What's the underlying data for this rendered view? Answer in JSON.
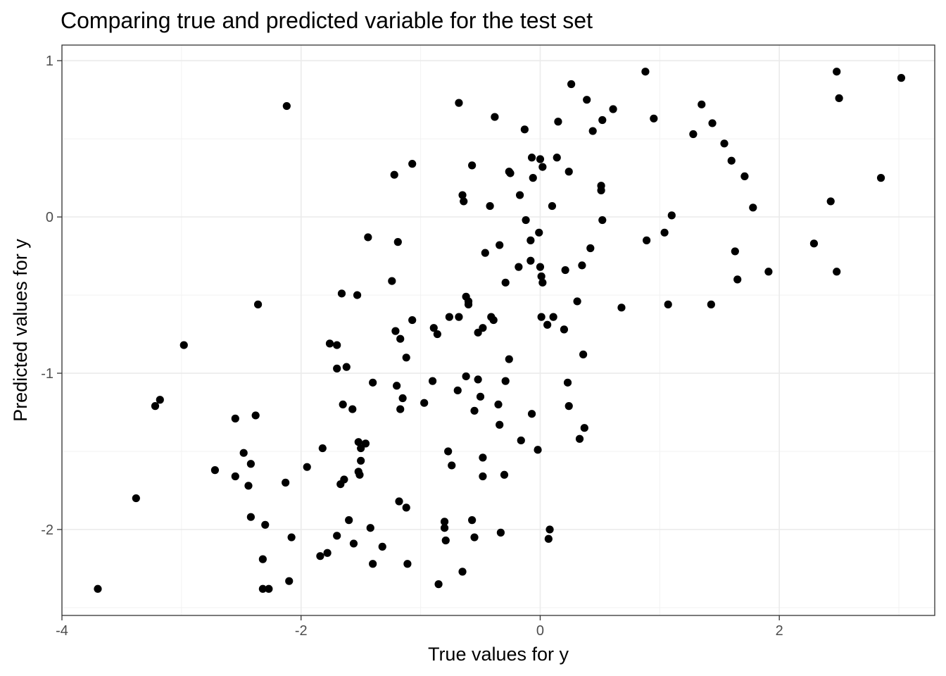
{
  "chart_data": {
    "type": "scatter",
    "title": "Comparing true and predicted variable for the test set",
    "xlabel": "True values for y",
    "ylabel": "Predicted values for y",
    "xlim": [
      -4.0,
      3.3
    ],
    "ylim": [
      -2.55,
      1.1
    ],
    "xticks": [
      -4,
      -2,
      0,
      2
    ],
    "yticks": [
      -2,
      -1,
      0,
      1
    ],
    "xtick_labels": [
      "-4",
      "-2",
      "0",
      "2"
    ],
    "ytick_labels": [
      "-2",
      "-1",
      "0",
      "1"
    ],
    "grid": true,
    "point_color": "#000000",
    "points": [
      [
        -3.7,
        -2.38
      ],
      [
        -3.38,
        -1.8
      ],
      [
        -3.22,
        -1.21
      ],
      [
        -3.18,
        -1.17
      ],
      [
        -2.98,
        -0.82
      ],
      [
        -2.72,
        -1.62
      ],
      [
        -2.55,
        -1.29
      ],
      [
        -2.55,
        -1.66
      ],
      [
        -2.48,
        -1.51
      ],
      [
        -2.44,
        -1.72
      ],
      [
        -2.42,
        -1.58
      ],
      [
        -2.42,
        -1.92
      ],
      [
        -2.38,
        -1.27
      ],
      [
        -2.36,
        -0.56
      ],
      [
        -2.32,
        -2.19
      ],
      [
        -2.32,
        -2.38
      ],
      [
        -2.3,
        -1.97
      ],
      [
        -2.27,
        -2.38
      ],
      [
        -2.13,
        -1.7
      ],
      [
        -2.12,
        0.71
      ],
      [
        -2.1,
        -2.33
      ],
      [
        -2.08,
        -2.05
      ],
      [
        -1.95,
        -1.6
      ],
      [
        -1.84,
        -2.17
      ],
      [
        -1.82,
        -1.48
      ],
      [
        -1.78,
        -2.15
      ],
      [
        -1.76,
        -0.81
      ],
      [
        -1.7,
        -0.97
      ],
      [
        -1.7,
        -0.82
      ],
      [
        -1.7,
        -2.04
      ],
      [
        -1.67,
        -1.71
      ],
      [
        -1.66,
        -0.49
      ],
      [
        -1.65,
        -1.2
      ],
      [
        -1.64,
        -1.68
      ],
      [
        -1.62,
        -0.96
      ],
      [
        -1.6,
        -1.94
      ],
      [
        -1.57,
        -1.23
      ],
      [
        -1.56,
        -2.09
      ],
      [
        -1.53,
        -0.5
      ],
      [
        -1.52,
        -1.44
      ],
      [
        -1.52,
        -1.63
      ],
      [
        -1.51,
        -1.65
      ],
      [
        -1.5,
        -1.48
      ],
      [
        -1.5,
        -1.56
      ],
      [
        -1.46,
        -1.45
      ],
      [
        -1.44,
        -0.13
      ],
      [
        -1.42,
        -1.99
      ],
      [
        -1.4,
        -1.06
      ],
      [
        -1.4,
        -2.22
      ],
      [
        -1.32,
        -2.11
      ],
      [
        -1.24,
        -0.41
      ],
      [
        -1.22,
        0.27
      ],
      [
        -1.21,
        -0.73
      ],
      [
        -1.2,
        -1.08
      ],
      [
        -1.19,
        -0.16
      ],
      [
        -1.18,
        -1.82
      ],
      [
        -1.17,
        -0.78
      ],
      [
        -1.17,
        -1.23
      ],
      [
        -1.15,
        -1.16
      ],
      [
        -1.12,
        -1.86
      ],
      [
        -1.12,
        -0.9
      ],
      [
        -1.11,
        -2.22
      ],
      [
        -1.07,
        -0.66
      ],
      [
        -1.07,
        0.34
      ],
      [
        -0.97,
        -1.19
      ],
      [
        -0.9,
        -1.05
      ],
      [
        -0.89,
        -0.71
      ],
      [
        -0.86,
        -0.75
      ],
      [
        -0.85,
        -2.35
      ],
      [
        -0.8,
        -1.95
      ],
      [
        -0.8,
        -1.99
      ],
      [
        -0.79,
        -2.07
      ],
      [
        -0.77,
        -1.5
      ],
      [
        -0.76,
        -0.64
      ],
      [
        -0.74,
        -1.59
      ],
      [
        -0.69,
        -1.11
      ],
      [
        -0.68,
        0.73
      ],
      [
        -0.68,
        -0.64
      ],
      [
        -0.65,
        -2.27
      ],
      [
        -0.65,
        0.14
      ],
      [
        -0.64,
        0.1
      ],
      [
        -0.62,
        -1.02
      ],
      [
        -0.62,
        -0.51
      ],
      [
        -0.6,
        -0.54
      ],
      [
        -0.6,
        -0.56
      ],
      [
        -0.57,
        -1.94
      ],
      [
        -0.57,
        0.33
      ],
      [
        -0.55,
        -2.05
      ],
      [
        -0.55,
        -1.24
      ],
      [
        -0.52,
        -1.04
      ],
      [
        -0.52,
        -0.74
      ],
      [
        -0.5,
        -1.15
      ],
      [
        -0.48,
        -0.71
      ],
      [
        -0.48,
        -1.54
      ],
      [
        -0.48,
        -1.66
      ],
      [
        -0.46,
        -0.23
      ],
      [
        -0.42,
        0.07
      ],
      [
        -0.41,
        -0.64
      ],
      [
        -0.39,
        -0.66
      ],
      [
        -0.38,
        0.64
      ],
      [
        -0.35,
        -1.2
      ],
      [
        -0.34,
        -0.18
      ],
      [
        -0.34,
        -1.33
      ],
      [
        -0.33,
        -2.02
      ],
      [
        -0.3,
        -1.65
      ],
      [
        -0.29,
        -0.42
      ],
      [
        -0.29,
        -1.05
      ],
      [
        -0.26,
        -0.91
      ],
      [
        -0.26,
        0.29
      ],
      [
        -0.25,
        0.28
      ],
      [
        -0.18,
        -0.32
      ],
      [
        -0.17,
        0.14
      ],
      [
        -0.16,
        -1.43
      ],
      [
        -0.13,
        0.56
      ],
      [
        -0.12,
        -0.02
      ],
      [
        -0.08,
        -0.15
      ],
      [
        -0.08,
        -0.28
      ],
      [
        -0.07,
        -1.26
      ],
      [
        -0.07,
        0.38
      ],
      [
        -0.06,
        0.25
      ],
      [
        -0.02,
        -1.49
      ],
      [
        -0.01,
        -0.1
      ],
      [
        0.0,
        0.37
      ],
      [
        0.0,
        -0.32
      ],
      [
        0.01,
        -0.38
      ],
      [
        0.01,
        -0.64
      ],
      [
        0.02,
        0.32
      ],
      [
        0.02,
        -0.42
      ],
      [
        0.06,
        -0.69
      ],
      [
        0.07,
        -2.06
      ],
      [
        0.08,
        -2.0
      ],
      [
        0.1,
        0.07
      ],
      [
        0.11,
        -0.64
      ],
      [
        0.14,
        0.38
      ],
      [
        0.15,
        0.61
      ],
      [
        0.2,
        -0.72
      ],
      [
        0.21,
        -0.34
      ],
      [
        0.23,
        -1.06
      ],
      [
        0.24,
        -1.21
      ],
      [
        0.24,
        0.29
      ],
      [
        0.26,
        0.85
      ],
      [
        0.31,
        -0.54
      ],
      [
        0.33,
        -1.42
      ],
      [
        0.35,
        -0.31
      ],
      [
        0.36,
        -0.88
      ],
      [
        0.37,
        -1.35
      ],
      [
        0.39,
        0.75
      ],
      [
        0.42,
        -0.2
      ],
      [
        0.44,
        0.55
      ],
      [
        0.51,
        0.17
      ],
      [
        0.51,
        0.2
      ],
      [
        0.52,
        -0.02
      ],
      [
        0.52,
        0.62
      ],
      [
        0.61,
        0.69
      ],
      [
        0.68,
        -0.58
      ],
      [
        0.88,
        0.93
      ],
      [
        0.89,
        -0.15
      ],
      [
        0.95,
        0.63
      ],
      [
        1.04,
        -0.1
      ],
      [
        1.07,
        -0.56
      ],
      [
        1.1,
        0.01
      ],
      [
        1.28,
        0.53
      ],
      [
        1.35,
        0.72
      ],
      [
        1.43,
        -0.56
      ],
      [
        1.44,
        0.6
      ],
      [
        1.54,
        0.47
      ],
      [
        1.6,
        0.36
      ],
      [
        1.63,
        -0.22
      ],
      [
        1.65,
        -0.4
      ],
      [
        1.71,
        0.26
      ],
      [
        1.78,
        0.06
      ],
      [
        1.91,
        -0.35
      ],
      [
        2.29,
        -0.17
      ],
      [
        2.43,
        0.1
      ],
      [
        2.48,
        0.93
      ],
      [
        2.48,
        -0.35
      ],
      [
        2.5,
        0.76
      ],
      [
        2.85,
        0.25
      ],
      [
        3.02,
        0.89
      ]
    ]
  }
}
